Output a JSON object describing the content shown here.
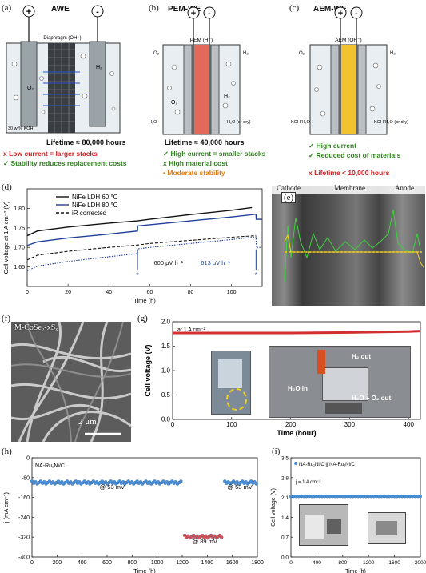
{
  "panel_a": {
    "label": "(a)",
    "title": "AWE",
    "plus": "+",
    "minus": "-",
    "diaphragm": "Diaphragm (OH⁻)",
    "h2": "H₂",
    "o2": "O₂",
    "electrolyte": "30 wt% KOH",
    "lifetime": "Lifetime ≈ 80,000 hours",
    "pros_cons": [
      {
        "mark": "x",
        "text": "Low current = larger stacks",
        "color": "red"
      },
      {
        "mark": "✓",
        "text": "Stability reduces replacement costs",
        "color": "green"
      }
    ]
  },
  "panel_b": {
    "label": "(b)",
    "title": "PEM-WE",
    "plus": "+",
    "minus": "-",
    "membrane": "PEM (H⁺)",
    "o2": "O₂",
    "h2": "H₂",
    "h2_low": "H₂",
    "o2_low": "O₂",
    "in_left": "H₂O",
    "in_right": "H₂O (or dry)",
    "lifetime": "Lifetime ≈ 40,000 hours",
    "pros_cons": [
      {
        "mark": "✓",
        "text": "High current = smaller stacks",
        "color": "green"
      },
      {
        "mark": "x",
        "text": "High material cost",
        "color": "green"
      },
      {
        "mark": "•",
        "text": "Moderate stability",
        "color": "orange"
      }
    ]
  },
  "panel_c": {
    "label": "(c)",
    "title": "AEM-WE",
    "plus": "+",
    "minus": "-",
    "membrane": "AEM (OH⁻)",
    "o2": "O₂",
    "h2": "H₂",
    "in_left": "KOH/H₂O",
    "in_right": "KOH/H₂O (or dry)",
    "pros_cons": [
      {
        "mark": "✓",
        "text": "High current",
        "color": "green"
      },
      {
        "mark": "✓",
        "text": "Reduced cost of materials",
        "color": "green"
      }
    ],
    "lifetime": "x  Lifetime < 10,000 hours"
  },
  "panel_d": {
    "label": "(d)",
    "chart_data": {
      "type": "line",
      "xlabel": "Time (h)",
      "ylabel": "Cell voltage at 1 A cm⁻² (V)",
      "xlim": [
        0,
        115
      ],
      "ylim": [
        1.6,
        1.85
      ],
      "xticks": [
        0,
        20,
        40,
        60,
        80,
        100
      ],
      "yticks": [
        1.65,
        1.7,
        1.75,
        1.8
      ],
      "legend_position": "top-left",
      "series": [
        {
          "name": "NiFe LDH 60 °C",
          "color": "#111111",
          "style": "solid",
          "x": [
            0,
            5,
            20,
            40,
            54,
            60,
            80,
            100,
            110
          ],
          "y": [
            1.73,
            1.742,
            1.752,
            1.762,
            1.768,
            1.772,
            1.784,
            1.795,
            1.802
          ]
        },
        {
          "name": "NiFe LDH 80 °C",
          "color": "#1f3f9a",
          "style": "solid",
          "x": [
            0,
            5,
            20,
            40,
            54,
            54.1,
            60,
            80,
            100,
            112,
            112.1,
            115
          ],
          "y": [
            1.705,
            1.714,
            1.724,
            1.734,
            1.742,
            1.755,
            1.758,
            1.768,
            1.778,
            1.785,
            1.772,
            1.772
          ]
        },
        {
          "name": "iR corrected",
          "color": "#111111",
          "style": "dashed",
          "x": [
            0,
            5,
            20,
            40,
            54,
            60,
            80,
            100,
            112
          ],
          "y": [
            1.668,
            1.68,
            1.69,
            1.7,
            1.706,
            1.71,
            1.718,
            1.726,
            1.73
          ]
        },
        {
          "name": "",
          "color": "#1f3f9a",
          "style": "dotted",
          "x": [
            0,
            5,
            20,
            40,
            54,
            54.1,
            60,
            80,
            100,
            112,
            112.1,
            115
          ],
          "y": [
            1.64,
            1.652,
            1.664,
            1.676,
            1.684,
            1.696,
            1.7,
            1.71,
            1.72,
            1.727,
            1.7,
            1.7
          ]
        }
      ],
      "annotations": [
        {
          "text": "600 μV h⁻¹",
          "color": "#111111",
          "x": 62,
          "y": 1.655
        },
        {
          "text": "613 μV h⁻¹",
          "color": "#1f3f9a",
          "x": 85,
          "y": 1.655
        }
      ],
      "markers": [
        {
          "text": "*",
          "x": 54,
          "y": 1.635
        },
        {
          "text": "*",
          "x": 112,
          "y": 1.635
        }
      ]
    }
  },
  "panel_e": {
    "label": "(e)",
    "cathode": "Cathode",
    "membrane": "Membrane",
    "anode": "Anode"
  },
  "panel_f": {
    "label": "(f)",
    "material": "M-CoSe₂-xSₓ",
    "scale": "2 μm"
  },
  "panel_g": {
    "label": "(g)",
    "chart_data": {
      "type": "line",
      "xlabel": "Time (hour)",
      "ylabel": "Cell voltage (V)",
      "xlim": [
        0,
        420
      ],
      "ylim": [
        0,
        2.0
      ],
      "xticks": [
        0,
        100,
        200,
        300,
        400
      ],
      "yticks": [
        0.0,
        0.5,
        1.0,
        1.5,
        2.0
      ],
      "series": [
        {
          "name": "",
          "color": "#d23030",
          "x": [
            0,
            100,
            200,
            300,
            400,
            420
          ],
          "y": [
            1.77,
            1.77,
            1.77,
            1.78,
            1.8,
            1.81
          ]
        }
      ],
      "annotations": [
        {
          "text": "at 1 A cm⁻²"
        }
      ]
    },
    "inset_labels": {
      "h2_out": "H₂ out",
      "h2o_in": "H₂O in",
      "h2o_o2_out": "H₂O + O₂ out"
    }
  },
  "panel_h": {
    "label": "(h)",
    "chart_data": {
      "type": "scatter",
      "xlabel": "Time (h)",
      "ylabel": "j (mA cm⁻²)",
      "xlim": [
        0,
        1800
      ],
      "ylim": [
        -400,
        0
      ],
      "xticks": [
        0,
        200,
        400,
        600,
        800,
        1000,
        1200,
        1400,
        1600,
        1800
      ],
      "yticks": [
        0,
        -80,
        -160,
        -240,
        -320,
        -400
      ],
      "series": [
        {
          "name": "NA-Ru₁Ni/C",
          "color": "#4a90d9",
          "x_range": [
            0,
            1200
          ],
          "y": -100
        },
        {
          "name": "",
          "color": "#e05050",
          "x_range": [
            1220,
            1520
          ],
          "y": -318
        },
        {
          "name": "",
          "color": "#4a90d9",
          "x_range": [
            1540,
            1800
          ],
          "y": -100
        }
      ],
      "annotations": [
        {
          "text": "@ 53 mV"
        },
        {
          "text": "@ 89 mV"
        },
        {
          "text": "@ 53 mV"
        }
      ]
    }
  },
  "panel_i": {
    "label": "(i)",
    "chart_data": {
      "type": "scatter",
      "xlabel": "Time (h)",
      "ylabel": "Cell voltage (V)",
      "xlim": [
        0,
        2000
      ],
      "ylim": [
        0,
        3.5
      ],
      "xticks": [
        0,
        400,
        800,
        1200,
        1600,
        2000
      ],
      "yticks": [
        0.0,
        0.7,
        1.4,
        2.1,
        2.8,
        3.5
      ],
      "series": [
        {
          "name": "NA-Ru₁Ni/C || NA-Ru₁Ni/C",
          "color": "#4a90d9",
          "x_range": [
            0,
            2000
          ],
          "y": 2.1
        }
      ],
      "annotations": [
        {
          "text": "j = 1 A cm⁻²"
        }
      ]
    }
  }
}
